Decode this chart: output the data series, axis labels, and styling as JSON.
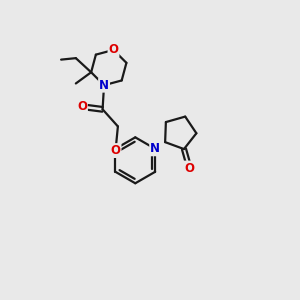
{
  "background_color": "#e9e9e9",
  "bond_color": "#1a1a1a",
  "atom_colors": {
    "O": "#dd0000",
    "N": "#0000cc",
    "C": "#1a1a1a"
  },
  "line_width": 1.6,
  "font_size_atoms": 8.5,
  "figsize": [
    3.0,
    3.0
  ],
  "dpi": 100
}
